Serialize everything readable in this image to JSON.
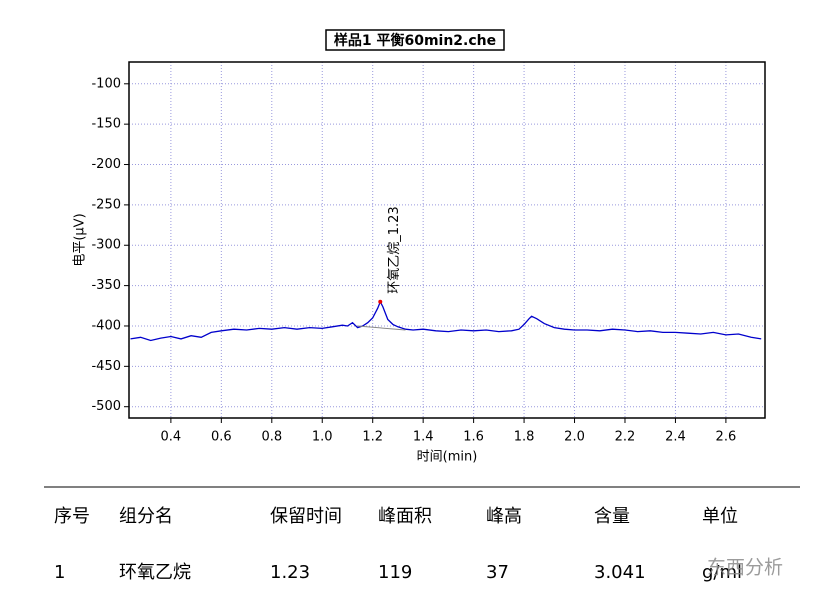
{
  "chart_data": {
    "type": "line",
    "title": "样品1 平衡60min2.che",
    "x_label": "时间(min)",
    "y_label": "电平(μV)",
    "xlim": [
      0.234,
      2.755
    ],
    "ylim": [
      -514,
      -73
    ],
    "xticks": [
      0.4,
      0.6,
      0.8,
      {
        "value": 1,
        "label": "1.0"
      },
      1.2,
      1.4,
      1.6,
      1.8,
      {
        "value": 2,
        "label": "2.0"
      },
      2.2,
      2.4,
      2.6
    ],
    "yticks": [
      -100,
      -150,
      -200,
      -250,
      -300,
      -350,
      -400,
      -450,
      -500
    ],
    "grid": true,
    "series": [
      {
        "name": "signal",
        "color": "#0000cc",
        "x": [
          0.24,
          0.28,
          0.32,
          0.36,
          0.4,
          0.44,
          0.48,
          0.52,
          0.56,
          0.6,
          0.65,
          0.7,
          0.75,
          0.8,
          0.85,
          0.9,
          0.95,
          1.0,
          1.04,
          1.08,
          1.1,
          1.12,
          1.14,
          1.16,
          1.18,
          1.2,
          1.22,
          1.23,
          1.24,
          1.26,
          1.28,
          1.3,
          1.33,
          1.36,
          1.4,
          1.45,
          1.5,
          1.55,
          1.6,
          1.65,
          1.7,
          1.75,
          1.78,
          1.8,
          1.82,
          1.83,
          1.85,
          1.88,
          1.92,
          1.96,
          2.0,
          2.05,
          2.1,
          2.15,
          2.2,
          2.25,
          2.3,
          2.35,
          2.4,
          2.45,
          2.5,
          2.55,
          2.6,
          2.65,
          2.7,
          2.74
        ],
        "values": [
          -416,
          -414,
          -418,
          -415,
          -413,
          -416,
          -412,
          -414,
          -408,
          -406,
          -404,
          -405,
          -403,
          -404,
          -402,
          -404,
          -402,
          -403,
          -401,
          -399,
          -400,
          -396,
          -402,
          -400,
          -396,
          -390,
          -378,
          -370,
          -376,
          -392,
          -398,
          -401,
          -404,
          -405,
          -404,
          -406,
          -407,
          -405,
          -406,
          -405,
          -407,
          -406,
          -404,
          -398,
          -391,
          -388,
          -391,
          -397,
          -402,
          -404,
          -405,
          -405,
          -406,
          -404,
          -405,
          -407,
          -406,
          -408,
          -408,
          -409,
          -410,
          -408,
          -411,
          -410,
          -414,
          -416
        ]
      }
    ],
    "baseline": {
      "x": [
        1.14,
        1.33
      ],
      "y": [
        -400,
        -405
      ]
    },
    "peak": {
      "text": "环氧乙烷_1.23",
      "x": 1.23,
      "y": -370
    }
  },
  "table": {
    "header": [
      "序号",
      "组分名",
      "保留时间",
      "峰面积",
      "峰高",
      "含量",
      "单位"
    ],
    "rows": [
      [
        "1",
        "环氧乙烷",
        "1.23",
        "119",
        "37",
        "3.041",
        "g/ml"
      ]
    ]
  },
  "watermark": "东西分析"
}
